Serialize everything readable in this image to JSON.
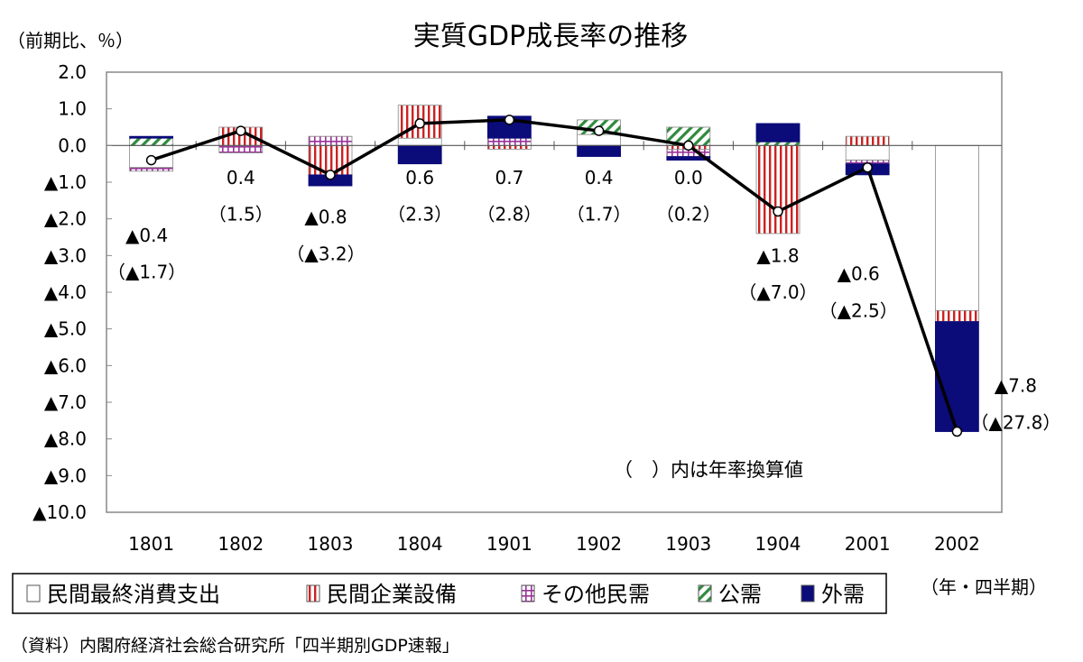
{
  "chart_data": {
    "type": "bar",
    "title": "実質GDP成長率の推移",
    "ylabel": "（前期比、％）",
    "xlabel": "（年・四半期）",
    "ylim": [
      -10,
      2
    ],
    "yticks": [
      2,
      1,
      0,
      -1,
      -2,
      -3,
      -4,
      -5,
      -6,
      -7,
      -8,
      -9,
      -10
    ],
    "ytick_labels": [
      "2.0",
      "1.0",
      "0.0",
      "▲1.0",
      "▲2.0",
      "▲3.0",
      "▲4.0",
      "▲5.0",
      "▲6.0",
      "▲7.0",
      "▲8.0",
      "▲9.0",
      "▲10.0"
    ],
    "categories": [
      "1801",
      "1802",
      "1803",
      "1804",
      "1901",
      "1902",
      "1903",
      "1904",
      "2001",
      "2002"
    ],
    "stacked": true,
    "series": [
      {
        "name": "民間最終消費支出",
        "pattern": "empty",
        "color": "#ffffff",
        "values": [
          -0.6,
          0.0,
          0.0,
          0.2,
          0.0,
          0.3,
          0.0,
          0.0,
          -0.4,
          -4.5
        ]
      },
      {
        "name": "民間企業設備",
        "pattern": "vertical-red",
        "color": "#cc2222",
        "values": [
          0.0,
          0.5,
          -0.8,
          0.9,
          -0.1,
          0.0,
          -0.1,
          -2.4,
          0.25,
          -0.3
        ]
      },
      {
        "name": "その他民需",
        "pattern": "grid-purple",
        "color": "#993399",
        "values": [
          -0.1,
          -0.2,
          0.25,
          0.0,
          0.2,
          0.0,
          -0.2,
          0.0,
          -0.1,
          0.0
        ]
      },
      {
        "name": "公需",
        "pattern": "diagonal-green",
        "color": "#2e8b3d",
        "values": [
          0.2,
          0.0,
          0.0,
          0.0,
          0.0,
          0.4,
          0.5,
          0.1,
          0.0,
          0.0
        ]
      },
      {
        "name": "外需",
        "pattern": "solid-navy",
        "color": "#0b0b7a",
        "values": [
          0.05,
          0.0,
          -0.3,
          -0.5,
          0.6,
          -0.3,
          -0.1,
          0.5,
          -0.3,
          -3.0
        ]
      }
    ],
    "line": {
      "name": "実質GDP成長率",
      "values": [
        -0.4,
        0.4,
        -0.8,
        0.6,
        0.7,
        0.4,
        0.0,
        -1.8,
        -0.6,
        -7.8
      ]
    },
    "data_labels": [
      {
        "value": "▲0.4",
        "annual": "（▲1.7）"
      },
      {
        "value": "0.4",
        "annual": "（1.5）"
      },
      {
        "value": "▲0.8",
        "annual": "（▲3.2）"
      },
      {
        "value": "0.6",
        "annual": "（2.3）"
      },
      {
        "value": "0.7",
        "annual": "（2.8）"
      },
      {
        "value": "0.4",
        "annual": "（1.7）"
      },
      {
        "value": "0.0",
        "annual": "（0.2）"
      },
      {
        "value": "▲1.8",
        "annual": "（▲7.0）"
      },
      {
        "value": "▲0.6",
        "annual": "（▲2.5）"
      },
      {
        "value": "▲7.8",
        "annual": "（▲27.8）"
      }
    ],
    "annotation": "（　）内は年率換算値",
    "legend_position": "bottom",
    "grid": false,
    "source": "（資料）内閣府経済社会総合研究所「四半期別GDP速報」"
  }
}
